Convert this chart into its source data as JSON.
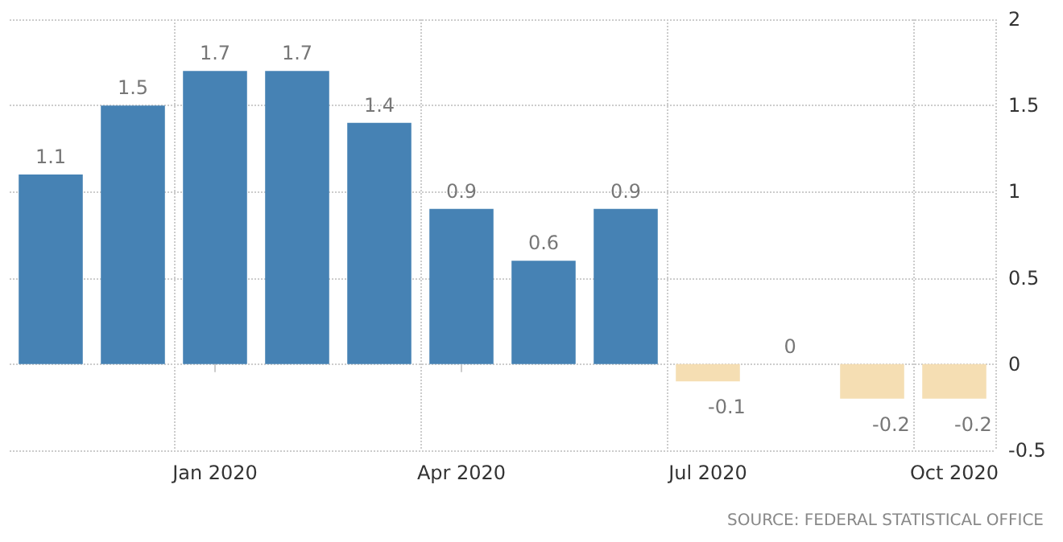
{
  "chart_data": {
    "type": "bar",
    "categories": [
      null,
      null,
      "Jan 2020",
      null,
      null,
      "Apr 2020",
      null,
      null,
      "Jul 2020",
      null,
      null,
      "Oct 2020"
    ],
    "values": [
      1.1,
      1.5,
      1.7,
      1.7,
      1.4,
      0.9,
      0.6,
      0.9,
      -0.1,
      0,
      -0.2,
      -0.2
    ],
    "colors": [
      "#4682b4",
      "#4682b4",
      "#4682b4",
      "#4682b4",
      "#4682b4",
      "#4682b4",
      "#4682b4",
      "#4682b4",
      "#f5deb3",
      "#f5deb3",
      "#f5deb3",
      "#f5deb3"
    ],
    "ylim": [
      -0.5,
      2
    ],
    "yticks": [
      -0.5,
      0,
      0.5,
      1,
      1.5,
      2
    ],
    "grid": true,
    "data_labels": true,
    "annotations": [
      "SOURCE: FEDERAL STATISTICAL OFFICE"
    ]
  }
}
